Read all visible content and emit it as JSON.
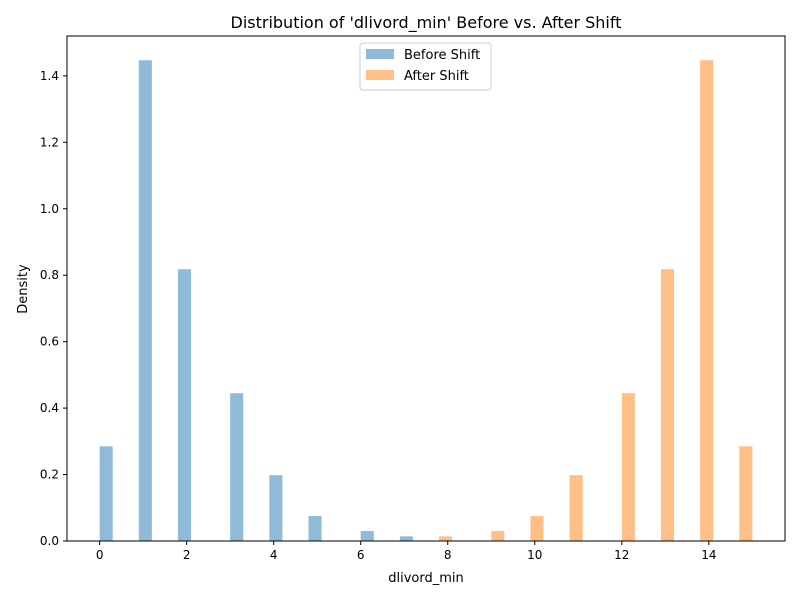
{
  "chart_data": {
    "type": "bar",
    "title": "Distribution of 'dlivord_min' Before vs. After Shift",
    "xlabel": "dlivord_min",
    "ylabel": "Density",
    "xlim": [
      -0.75,
      15.75
    ],
    "ylim": [
      0,
      1.52
    ],
    "xticks": [
      0,
      2,
      4,
      6,
      8,
      10,
      12,
      14
    ],
    "yticks": [
      0.0,
      0.2,
      0.4,
      0.6,
      0.8,
      1.0,
      1.2,
      1.4
    ],
    "ytick_labels": [
      "0.0",
      "0.2",
      "0.4",
      "0.6",
      "0.8",
      "1.0",
      "1.2",
      "1.4"
    ],
    "bar_width": 0.3,
    "grid": false,
    "legend_position": "top-center",
    "series": [
      {
        "name": "Before Shift",
        "color": "#1f77b4",
        "opacity": 0.5,
        "x": [
          0.15,
          1.05,
          1.95,
          3.15,
          4.05,
          4.95,
          6.15,
          7.05
        ],
        "values": [
          0.285,
          1.447,
          0.818,
          0.445,
          0.198,
          0.075,
          0.03,
          0.014
        ]
      },
      {
        "name": "After Shift",
        "color": "#ff7f0e",
        "opacity": 0.5,
        "x": [
          7.95,
          9.15,
          10.05,
          10.95,
          12.15,
          13.05,
          13.95,
          14.85
        ],
        "values": [
          0.014,
          0.03,
          0.075,
          0.198,
          0.445,
          0.818,
          1.447,
          0.285
        ]
      }
    ]
  }
}
